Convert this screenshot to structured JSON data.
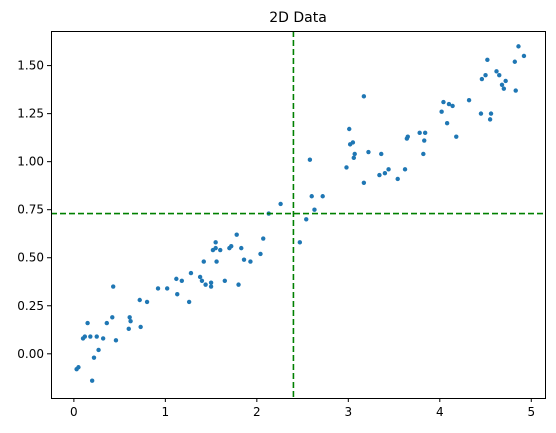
{
  "chart_data": {
    "type": "scatter",
    "title": "2D Data",
    "xlabel": "",
    "ylabel": "",
    "xlim": [
      -0.25,
      5.15
    ],
    "ylim": [
      -0.23,
      1.68
    ],
    "xticks": [
      0,
      1,
      2,
      3,
      4,
      5
    ],
    "xtick_labels": [
      "0",
      "1",
      "2",
      "3",
      "4",
      "5"
    ],
    "yticks": [
      0.0,
      0.25,
      0.5,
      0.75,
      1.0,
      1.25,
      1.5
    ],
    "ytick_labels": [
      "0.00",
      "0.25",
      "0.50",
      "0.75",
      "1.00",
      "1.25",
      "1.50"
    ],
    "grid": false,
    "point_color": "#1f77b4",
    "reference_color": "#008000",
    "reference_lines": {
      "x": 2.4,
      "y": 0.73
    },
    "points": [
      [
        0.03,
        -0.08
      ],
      [
        0.05,
        -0.07
      ],
      [
        0.1,
        0.08
      ],
      [
        0.12,
        0.09
      ],
      [
        0.15,
        0.16
      ],
      [
        0.18,
        0.09
      ],
      [
        0.2,
        -0.14
      ],
      [
        0.22,
        -0.02
      ],
      [
        0.25,
        0.09
      ],
      [
        0.27,
        0.02
      ],
      [
        0.32,
        0.08
      ],
      [
        0.36,
        0.16
      ],
      [
        0.42,
        0.19
      ],
      [
        0.43,
        0.35
      ],
      [
        0.46,
        0.07
      ],
      [
        0.6,
        0.13
      ],
      [
        0.61,
        0.19
      ],
      [
        0.62,
        0.17
      ],
      [
        0.72,
        0.28
      ],
      [
        0.73,
        0.14
      ],
      [
        0.8,
        0.27
      ],
      [
        0.92,
        0.34
      ],
      [
        1.02,
        0.34
      ],
      [
        1.12,
        0.39
      ],
      [
        1.13,
        0.31
      ],
      [
        1.18,
        0.38
      ],
      [
        1.26,
        0.27
      ],
      [
        1.28,
        0.42
      ],
      [
        1.38,
        0.4
      ],
      [
        1.4,
        0.38
      ],
      [
        1.42,
        0.48
      ],
      [
        1.44,
        0.36
      ],
      [
        1.5,
        0.37
      ],
      [
        1.5,
        0.35
      ],
      [
        1.52,
        0.54
      ],
      [
        1.55,
        0.58
      ],
      [
        1.55,
        0.55
      ],
      [
        1.56,
        0.48
      ],
      [
        1.6,
        0.54
      ],
      [
        1.65,
        0.38
      ],
      [
        1.7,
        0.55
      ],
      [
        1.72,
        0.56
      ],
      [
        1.78,
        0.62
      ],
      [
        1.8,
        0.36
      ],
      [
        1.83,
        0.55
      ],
      [
        1.86,
        0.49
      ],
      [
        1.93,
        0.48
      ],
      [
        2.04,
        0.52
      ],
      [
        2.07,
        0.6
      ],
      [
        2.13,
        0.73
      ],
      [
        2.26,
        0.78
      ],
      [
        2.47,
        0.58
      ],
      [
        2.54,
        0.7
      ],
      [
        2.58,
        1.01
      ],
      [
        2.6,
        0.82
      ],
      [
        2.63,
        0.75
      ],
      [
        2.72,
        0.82
      ],
      [
        2.98,
        0.97
      ],
      [
        3.01,
        1.17
      ],
      [
        3.02,
        1.09
      ],
      [
        3.05,
        1.1
      ],
      [
        3.06,
        1.02
      ],
      [
        3.07,
        1.04
      ],
      [
        3.17,
        0.89
      ],
      [
        3.17,
        1.34
      ],
      [
        3.22,
        1.05
      ],
      [
        3.34,
        0.93
      ],
      [
        3.36,
        1.04
      ],
      [
        3.4,
        0.94
      ],
      [
        3.44,
        0.96
      ],
      [
        3.54,
        0.91
      ],
      [
        3.62,
        0.96
      ],
      [
        3.64,
        1.12
      ],
      [
        3.65,
        1.13
      ],
      [
        3.78,
        1.15
      ],
      [
        3.82,
        1.04
      ],
      [
        3.83,
        1.11
      ],
      [
        3.84,
        1.15
      ],
      [
        4.02,
        1.26
      ],
      [
        4.04,
        1.31
      ],
      [
        4.08,
        1.2
      ],
      [
        4.1,
        1.3
      ],
      [
        4.14,
        1.29
      ],
      [
        4.18,
        1.13
      ],
      [
        4.32,
        1.32
      ],
      [
        4.45,
        1.25
      ],
      [
        4.46,
        1.43
      ],
      [
        4.5,
        1.45
      ],
      [
        4.52,
        1.53
      ],
      [
        4.55,
        1.22
      ],
      [
        4.56,
        1.25
      ],
      [
        4.62,
        1.47
      ],
      [
        4.65,
        1.45
      ],
      [
        4.68,
        1.4
      ],
      [
        4.7,
        1.38
      ],
      [
        4.72,
        1.42
      ],
      [
        4.82,
        1.52
      ],
      [
        4.83,
        1.37
      ],
      [
        4.86,
        1.6
      ],
      [
        4.92,
        1.55
      ]
    ]
  }
}
